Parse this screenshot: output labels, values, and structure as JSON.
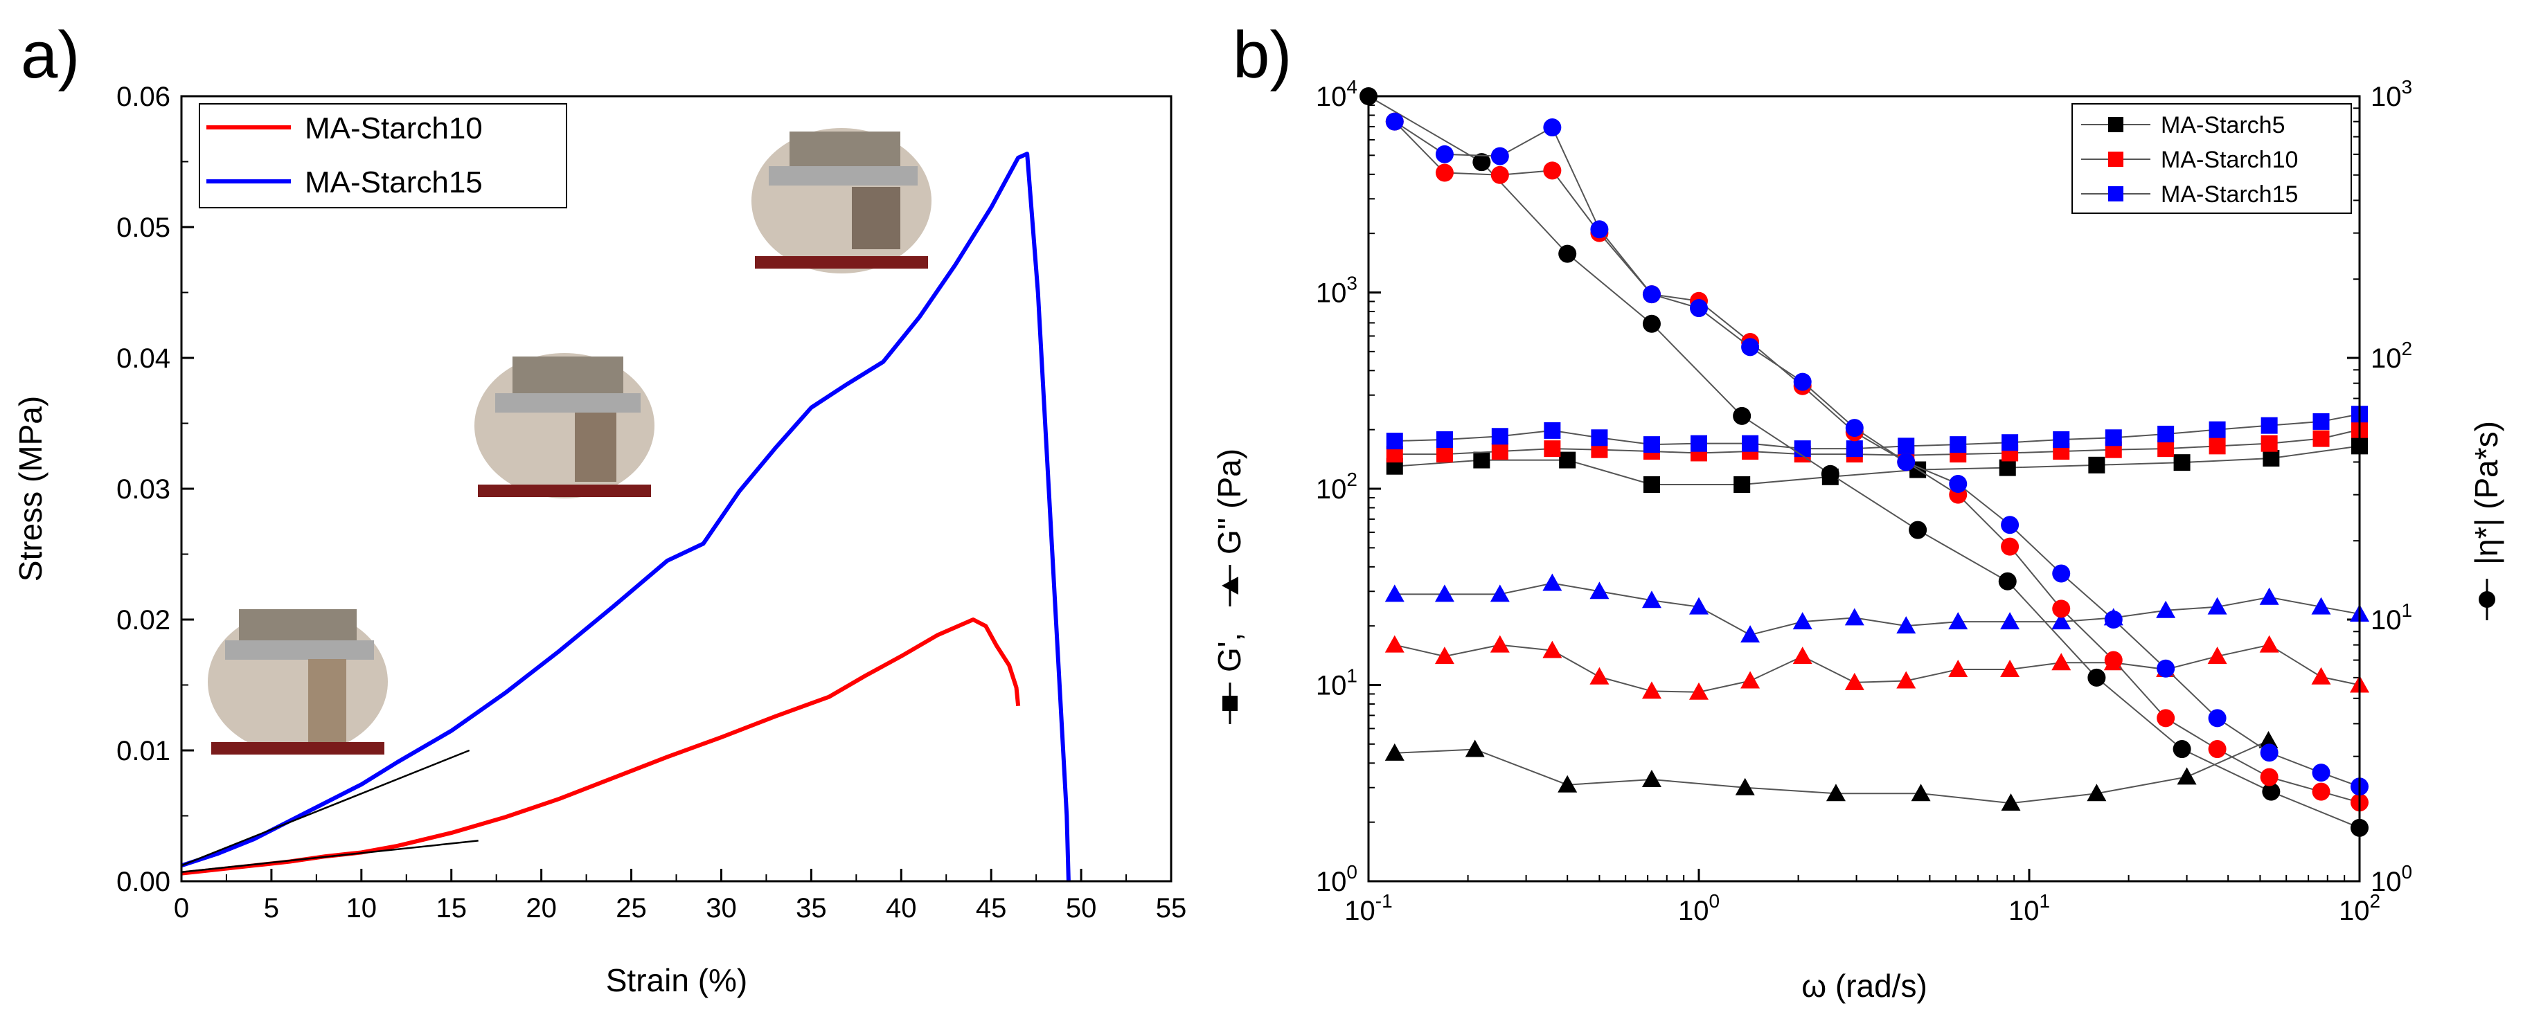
{
  "figure": {
    "panel_a_label": "a)",
    "panel_b_label": "b)"
  },
  "chart_data": [
    {
      "type": "line",
      "panel": "a",
      "title": "",
      "xlabel": "Strain (%)",
      "ylabel": "Stress (MPa)",
      "xlim": [
        0,
        55
      ],
      "ylim": [
        0,
        0.06
      ],
      "xticks": [
        0,
        5,
        10,
        15,
        20,
        25,
        30,
        35,
        40,
        45,
        50,
        55
      ],
      "xtick_labels": [
        "0",
        "5",
        "10",
        "15",
        "20",
        "25",
        "30",
        "35",
        "40",
        "45",
        "50",
        "55"
      ],
      "yticks": [
        0,
        0.01,
        0.02,
        0.03,
        0.04,
        0.05,
        0.06
      ],
      "ytick_labels": [
        "0.00",
        "0.01",
        "0.02",
        "0.03",
        "0.04",
        "0.05",
        "0.06"
      ],
      "legend_position": "top-left",
      "series": [
        {
          "name": "MA-Starch10",
          "color": "#ff0000",
          "x": [
            0,
            2,
            4,
            6,
            8,
            10,
            12,
            15,
            18,
            21,
            24,
            27,
            30,
            33,
            36,
            38,
            40,
            42,
            44,
            44.7,
            45.3,
            46,
            46.4,
            46.5
          ],
          "y": [
            0.0006,
            0.0009,
            0.0012,
            0.0015,
            0.0019,
            0.0022,
            0.0027,
            0.0037,
            0.0049,
            0.0063,
            0.0079,
            0.0095,
            0.011,
            0.0126,
            0.0141,
            0.0157,
            0.0172,
            0.0188,
            0.02,
            0.0195,
            0.018,
            0.0165,
            0.0148,
            0.0134
          ]
        },
        {
          "name": "MA-Starch15",
          "color": "#0000ff",
          "x": [
            0,
            2,
            4,
            6,
            8,
            10,
            12,
            15,
            18,
            21,
            24,
            27,
            29,
            31,
            33,
            35,
            37,
            39,
            41,
            43,
            45,
            46.5,
            47,
            47.6,
            48.2,
            48.8,
            49.2,
            49.3
          ],
          "y": [
            0.0012,
            0.0021,
            0.0032,
            0.0046,
            0.006,
            0.0074,
            0.0091,
            0.0115,
            0.0144,
            0.0176,
            0.021,
            0.0245,
            0.0258,
            0.0298,
            0.0331,
            0.0362,
            0.038,
            0.0397,
            0.0431,
            0.0471,
            0.0515,
            0.0553,
            0.0556,
            0.045,
            0.03,
            0.015,
            0.005,
            0.0
          ]
        }
      ],
      "annotations": [
        {
          "name": "initial-slope-starch15",
          "x": [
            0,
            16
          ],
          "y": [
            0.0012,
            0.01
          ]
        },
        {
          "name": "initial-slope-starch10",
          "x": [
            0,
            16.5
          ],
          "y": [
            0.0007,
            0.0031
          ]
        }
      ]
    },
    {
      "type": "scatter",
      "panel": "b",
      "title": "",
      "xlabel": "ω (rad/s)",
      "ylabel": "G', G'' (Pa)",
      "ylabel_right": "|η*| (Pa*s)",
      "xscale": "log",
      "yscale": "log",
      "xlim": [
        0.1,
        100
      ],
      "ylim": [
        1,
        10000
      ],
      "ylim_right": [
        1,
        1000
      ],
      "xticks": [
        0.1,
        1,
        10,
        100
      ],
      "xtick_labels": [
        {
          "base": "10",
          "exp": "-1"
        },
        {
          "base": "10",
          "exp": "0"
        },
        {
          "base": "10",
          "exp": "1"
        },
        {
          "base": "10",
          "exp": "2"
        }
      ],
      "yticks": [
        1,
        10,
        100,
        1000,
        10000
      ],
      "ytick_labels": [
        {
          "base": "10",
          "exp": "0"
        },
        {
          "base": "10",
          "exp": "1"
        },
        {
          "base": "10",
          "exp": "2"
        },
        {
          "base": "10",
          "exp": "3"
        },
        {
          "base": "10",
          "exp": "4"
        }
      ],
      "yticks_right": [
        1,
        10,
        100,
        1000
      ],
      "ytick_labels_right": [
        {
          "base": "10",
          "exp": "0"
        },
        {
          "base": "10",
          "exp": "1"
        },
        {
          "base": "10",
          "exp": "2"
        },
        {
          "base": "10",
          "exp": "3"
        }
      ],
      "left_axis_parts": [
        "G', ",
        "G'' (Pa)"
      ],
      "right_axis_part": "|η*| (Pa*s)",
      "legend_position": "top-right",
      "legend": [
        {
          "name": "MA-Starch5",
          "color": "#000000"
        },
        {
          "name": "MA-Starch10",
          "color": "#ff0000"
        },
        {
          "name": "MA-Starch15",
          "color": "#0000ff"
        }
      ],
      "x": [
        0.12,
        0.17,
        0.25,
        0.36,
        0.5,
        0.72,
        1.0,
        1.43,
        2.06,
        2.96,
        4.24,
        6.09,
        8.74,
        12.5,
        18.0,
        25.9,
        37.1,
        53.3,
        76.5,
        100
      ],
      "series": [
        {
          "name": "MA-Starch5 G'",
          "color": "#000000",
          "marker": "square",
          "axis": "left",
          "x": [
            0.12,
            0.22,
            0.4,
            0.72,
            1.35,
            2.5,
            4.6,
            8.6,
            16,
            29,
            54,
            100
          ],
          "y": [
            130,
            140,
            140,
            105,
            105,
            115,
            125,
            128,
            132,
            136,
            143,
            165
          ]
        },
        {
          "name": "MA-Starch10 G'",
          "color": "#ff0000",
          "marker": "square",
          "axis": "left",
          "x": [
            0.12,
            0.17,
            0.25,
            0.36,
            0.5,
            0.72,
            1.0,
            1.43,
            2.06,
            2.96,
            4.24,
            6.09,
            8.74,
            12.5,
            18.0,
            25.9,
            37.1,
            53.3,
            76.5,
            100
          ],
          "y": [
            150,
            150,
            155,
            160,
            158,
            155,
            152,
            155,
            150,
            150,
            148,
            150,
            152,
            155,
            158,
            160,
            165,
            170,
            180,
            200
          ]
        },
        {
          "name": "MA-Starch15 G'",
          "color": "#0000ff",
          "marker": "square",
          "axis": "left",
          "x": [
            0.12,
            0.17,
            0.25,
            0.36,
            0.5,
            0.72,
            1.0,
            1.43,
            2.06,
            2.96,
            4.24,
            6.09,
            8.74,
            12.5,
            18.0,
            25.9,
            37.1,
            53.3,
            76.5,
            100
          ],
          "y": [
            175,
            178,
            185,
            198,
            182,
            168,
            170,
            170,
            160,
            160,
            165,
            168,
            172,
            178,
            182,
            190,
            200,
            210,
            220,
            240
          ]
        },
        {
          "name": "MA-Starch5 G''",
          "color": "#000000",
          "marker": "triangle",
          "axis": "left",
          "x": [
            0.12,
            0.21,
            0.4,
            0.72,
            1.38,
            2.6,
            4.7,
            8.8,
            16,
            30,
            53
          ],
          "y": [
            4.5,
            4.7,
            3.1,
            3.3,
            3.0,
            2.8,
            2.8,
            2.5,
            2.8,
            3.4,
            5.2
          ]
        },
        {
          "name": "MA-Starch10 G''",
          "color": "#ff0000",
          "marker": "triangle",
          "axis": "left",
          "x": [
            0.12,
            0.17,
            0.25,
            0.36,
            0.5,
            0.72,
            1.0,
            1.43,
            2.06,
            2.96,
            4.24,
            6.09,
            8.74,
            12.5,
            18.0,
            25.9,
            37.1,
            53.3,
            76.5,
            100
          ],
          "y": [
            16,
            14,
            16,
            15,
            11,
            9.3,
            9.2,
            10.5,
            14,
            10.3,
            10.5,
            12,
            12,
            13,
            13,
            12,
            14,
            16,
            11,
            10
          ]
        },
        {
          "name": "MA-Starch15 G''",
          "color": "#0000ff",
          "marker": "triangle",
          "axis": "left",
          "x": [
            0.12,
            0.17,
            0.25,
            0.36,
            0.5,
            0.72,
            1.0,
            1.43,
            2.06,
            2.96,
            4.24,
            6.09,
            8.74,
            12.5,
            18.0,
            25.9,
            37.1,
            53.3,
            76.5,
            100
          ],
          "y": [
            29,
            29,
            29,
            33,
            30,
            27,
            25,
            18,
            21,
            22,
            20,
            21,
            21,
            21,
            22,
            24,
            25,
            28,
            25,
            23
          ]
        },
        {
          "name": "MA-Starch5 |η*|",
          "color": "#000000",
          "marker": "circle",
          "axis": "right",
          "x": [
            0.1,
            0.22,
            0.4,
            0.72,
            1.35,
            2.5,
            4.6,
            8.6,
            16,
            29,
            54,
            100
          ],
          "y": [
            1000,
            560,
            250,
            135,
            60,
            36,
            22,
            14,
            6,
            3.2,
            2.2,
            1.6
          ]
        },
        {
          "name": "MA-Starch10 |η*|",
          "color": "#ff0000",
          "marker": "circle",
          "axis": "right",
          "x": [
            0.12,
            0.17,
            0.25,
            0.36,
            0.5,
            0.72,
            1.0,
            1.43,
            2.06,
            2.96,
            4.24,
            6.09,
            8.74,
            12.5,
            18.0,
            25.9,
            37.1,
            53.3,
            76.5,
            100
          ],
          "y": [
            800,
            510,
            500,
            520,
            300,
            175,
            165,
            115,
            78,
            52,
            40,
            30,
            19,
            11,
            7,
            4.2,
            3.2,
            2.5,
            2.2,
            2.0
          ]
        },
        {
          "name": "MA-Starch15 |η*|",
          "color": "#0000ff",
          "marker": "circle",
          "axis": "right",
          "x": [
            0.12,
            0.17,
            0.25,
            0.36,
            0.5,
            0.72,
            1.0,
            1.43,
            2.06,
            2.96,
            4.24,
            6.09,
            8.74,
            12.5,
            18.0,
            25.9,
            37.1,
            53.3,
            76.5,
            100
          ],
          "y": [
            800,
            600,
            590,
            760,
            310,
            175,
            155,
            110,
            81,
            54,
            40,
            33,
            23,
            15,
            10,
            6.5,
            4.2,
            3.1,
            2.6,
            2.3
          ]
        }
      ]
    }
  ]
}
